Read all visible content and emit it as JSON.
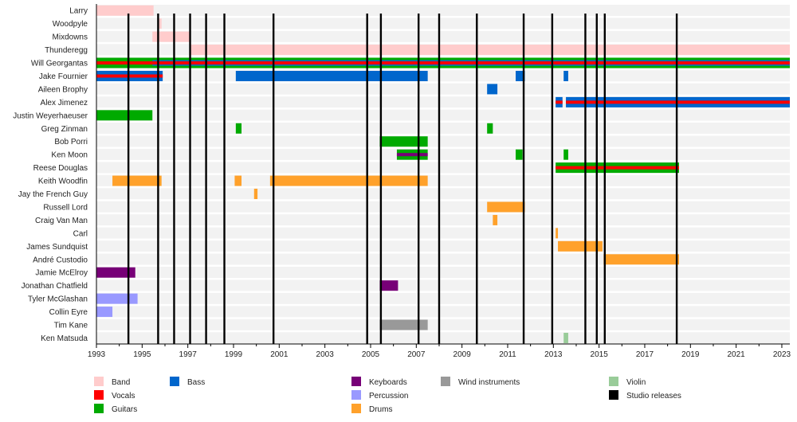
{
  "chart_data": {
    "type": "timeline",
    "title": "",
    "xlabel": "",
    "ylabel": "",
    "xlim": [
      1993,
      2023.35
    ],
    "x_ticks": [
      1993,
      1995,
      1997,
      1999,
      2001,
      2003,
      2005,
      2007,
      2009,
      2011,
      2013,
      2015,
      2017,
      2019,
      2021,
      2023
    ],
    "grid": false,
    "colors": {
      "Band": "#ffcccc",
      "Vocals": "#ff0000",
      "Guitars": "#00aa00",
      "Bass": "#0066cc",
      "Keyboards": "#770077",
      "Percussion": "#9999ff",
      "Drums": "#ffa12b",
      "Wind instruments": "#999999",
      "Violin": "#99cc99",
      "Studio releases": "#000000"
    },
    "legend": {
      "placement": "bottom",
      "entries": [
        "Band",
        "Vocals",
        "Guitars",
        "Bass",
        "Keyboards",
        "Percussion",
        "Drums",
        "Wind instruments",
        "Violin",
        "Studio releases"
      ]
    },
    "studio_releases": [
      1994.4,
      1995.7,
      1996.4,
      1997.1,
      1997.8,
      1998.6,
      2000.75,
      2004.85,
      2005.45,
      2007.1,
      2008.0,
      2009.65,
      2011.7,
      2012.95,
      2014.4,
      2014.9,
      2015.25,
      2018.4
    ],
    "rows": [
      {
        "name": "Larry",
        "bars": [
          {
            "role": "Band",
            "start": 1993.0,
            "end": 1995.5
          }
        ]
      },
      {
        "name": "Woodpyle",
        "bars": [
          {
            "role": "Band",
            "start": 1995.7,
            "end": 1995.85
          }
        ]
      },
      {
        "name": "Mixdowns",
        "bars": [
          {
            "role": "Band",
            "start": 1995.45,
            "end": 1997.1
          }
        ]
      },
      {
        "name": "Thunderegg",
        "bars": [
          {
            "role": "Band",
            "start": 1997.1,
            "end": 2023.35
          }
        ]
      },
      {
        "name": "Will Georgantas",
        "bars": [
          {
            "role": "Guitars",
            "start": 1993.0,
            "end": 2023.35,
            "overlay": "Vocals"
          },
          {
            "role": "Guitars",
            "start": 1995.45,
            "end": 2023.35,
            "overlay": "Vocals",
            "overlay2": "Bass"
          }
        ]
      },
      {
        "name": "Jake Fournier",
        "bars": [
          {
            "role": "Bass",
            "start": 1993.0,
            "end": 1995.9,
            "overlay": "Vocals"
          },
          {
            "role": "Bass",
            "start": 1999.1,
            "end": 2007.5
          },
          {
            "role": "Bass",
            "start": 2011.35,
            "end": 2011.75
          },
          {
            "role": "Bass",
            "start": 2013.45,
            "end": 2013.65
          }
        ]
      },
      {
        "name": "Aileen Brophy",
        "bars": [
          {
            "role": "Bass",
            "start": 2010.1,
            "end": 2010.55
          }
        ]
      },
      {
        "name": "Alex Jimenez",
        "bars": [
          {
            "role": "Bass",
            "start": 2013.1,
            "end": 2013.4,
            "overlay": "Vocals"
          },
          {
            "role": "Bass",
            "start": 2013.55,
            "end": 2023.35,
            "overlay": "Vocals"
          }
        ]
      },
      {
        "name": "Justin Weyerhaeuser",
        "bars": [
          {
            "role": "Guitars",
            "start": 1993.0,
            "end": 1995.45
          }
        ]
      },
      {
        "name": "Greg Zinman",
        "bars": [
          {
            "role": "Guitars",
            "start": 1999.1,
            "end": 1999.35
          },
          {
            "role": "Guitars",
            "start": 2010.1,
            "end": 2010.35
          }
        ]
      },
      {
        "name": "Bob Porri",
        "bars": [
          {
            "role": "Guitars",
            "start": 2005.4,
            "end": 2007.5
          }
        ]
      },
      {
        "name": "Ken Moon",
        "bars": [
          {
            "role": "Guitars",
            "start": 2006.15,
            "end": 2007.5,
            "overlay": "Keyboards"
          },
          {
            "role": "Guitars",
            "start": 2011.35,
            "end": 2011.65
          },
          {
            "role": "Guitars",
            "start": 2013.45,
            "end": 2013.65
          }
        ]
      },
      {
        "name": "Reese Douglas",
        "bars": [
          {
            "role": "Guitars",
            "start": 2013.1,
            "end": 2018.5,
            "overlay": "Vocals"
          }
        ]
      },
      {
        "name": "Keith Woodfin",
        "bars": [
          {
            "role": "Drums",
            "start": 1993.7,
            "end": 1995.85
          },
          {
            "role": "Drums",
            "start": 1999.05,
            "end": 1999.35
          },
          {
            "role": "Drums",
            "start": 2000.6,
            "end": 2007.5
          }
        ]
      },
      {
        "name": "Jay the French Guy",
        "bars": [
          {
            "role": "Drums",
            "start": 1999.9,
            "end": 2000.05
          }
        ]
      },
      {
        "name": "Russell Lord",
        "bars": [
          {
            "role": "Drums",
            "start": 2010.1,
            "end": 2011.75
          }
        ]
      },
      {
        "name": "Craig Van Man",
        "bars": [
          {
            "role": "Drums",
            "start": 2010.35,
            "end": 2010.55
          }
        ]
      },
      {
        "name": "Carl",
        "bars": [
          {
            "role": "Drums",
            "start": 2013.1,
            "end": 2013.2
          }
        ]
      },
      {
        "name": "James Sundquist",
        "bars": [
          {
            "role": "Drums",
            "start": 2013.2,
            "end": 2015.15
          }
        ]
      },
      {
        "name": "André Custodio",
        "bars": [
          {
            "role": "Drums",
            "start": 2015.2,
            "end": 2018.5
          }
        ]
      },
      {
        "name": "Jamie McElroy",
        "bars": [
          {
            "role": "Keyboards",
            "start": 1993.0,
            "end": 1994.7
          }
        ]
      },
      {
        "name": "Jonathan Chatfield",
        "bars": [
          {
            "role": "Keyboards",
            "start": 2005.4,
            "end": 2006.2
          }
        ]
      },
      {
        "name": "Tyler McGlashan",
        "bars": [
          {
            "role": "Percussion",
            "start": 1993.0,
            "end": 1994.8
          }
        ]
      },
      {
        "name": "Collin Eyre",
        "bars": [
          {
            "role": "Percussion",
            "start": 1993.0,
            "end": 1993.7
          }
        ]
      },
      {
        "name": "Tim Kane",
        "bars": [
          {
            "role": "Wind instruments",
            "start": 2005.4,
            "end": 2007.5
          }
        ]
      },
      {
        "name": "Ken Matsuda",
        "bars": [
          {
            "role": "Violin",
            "start": 2013.45,
            "end": 2013.65
          }
        ]
      }
    ]
  }
}
